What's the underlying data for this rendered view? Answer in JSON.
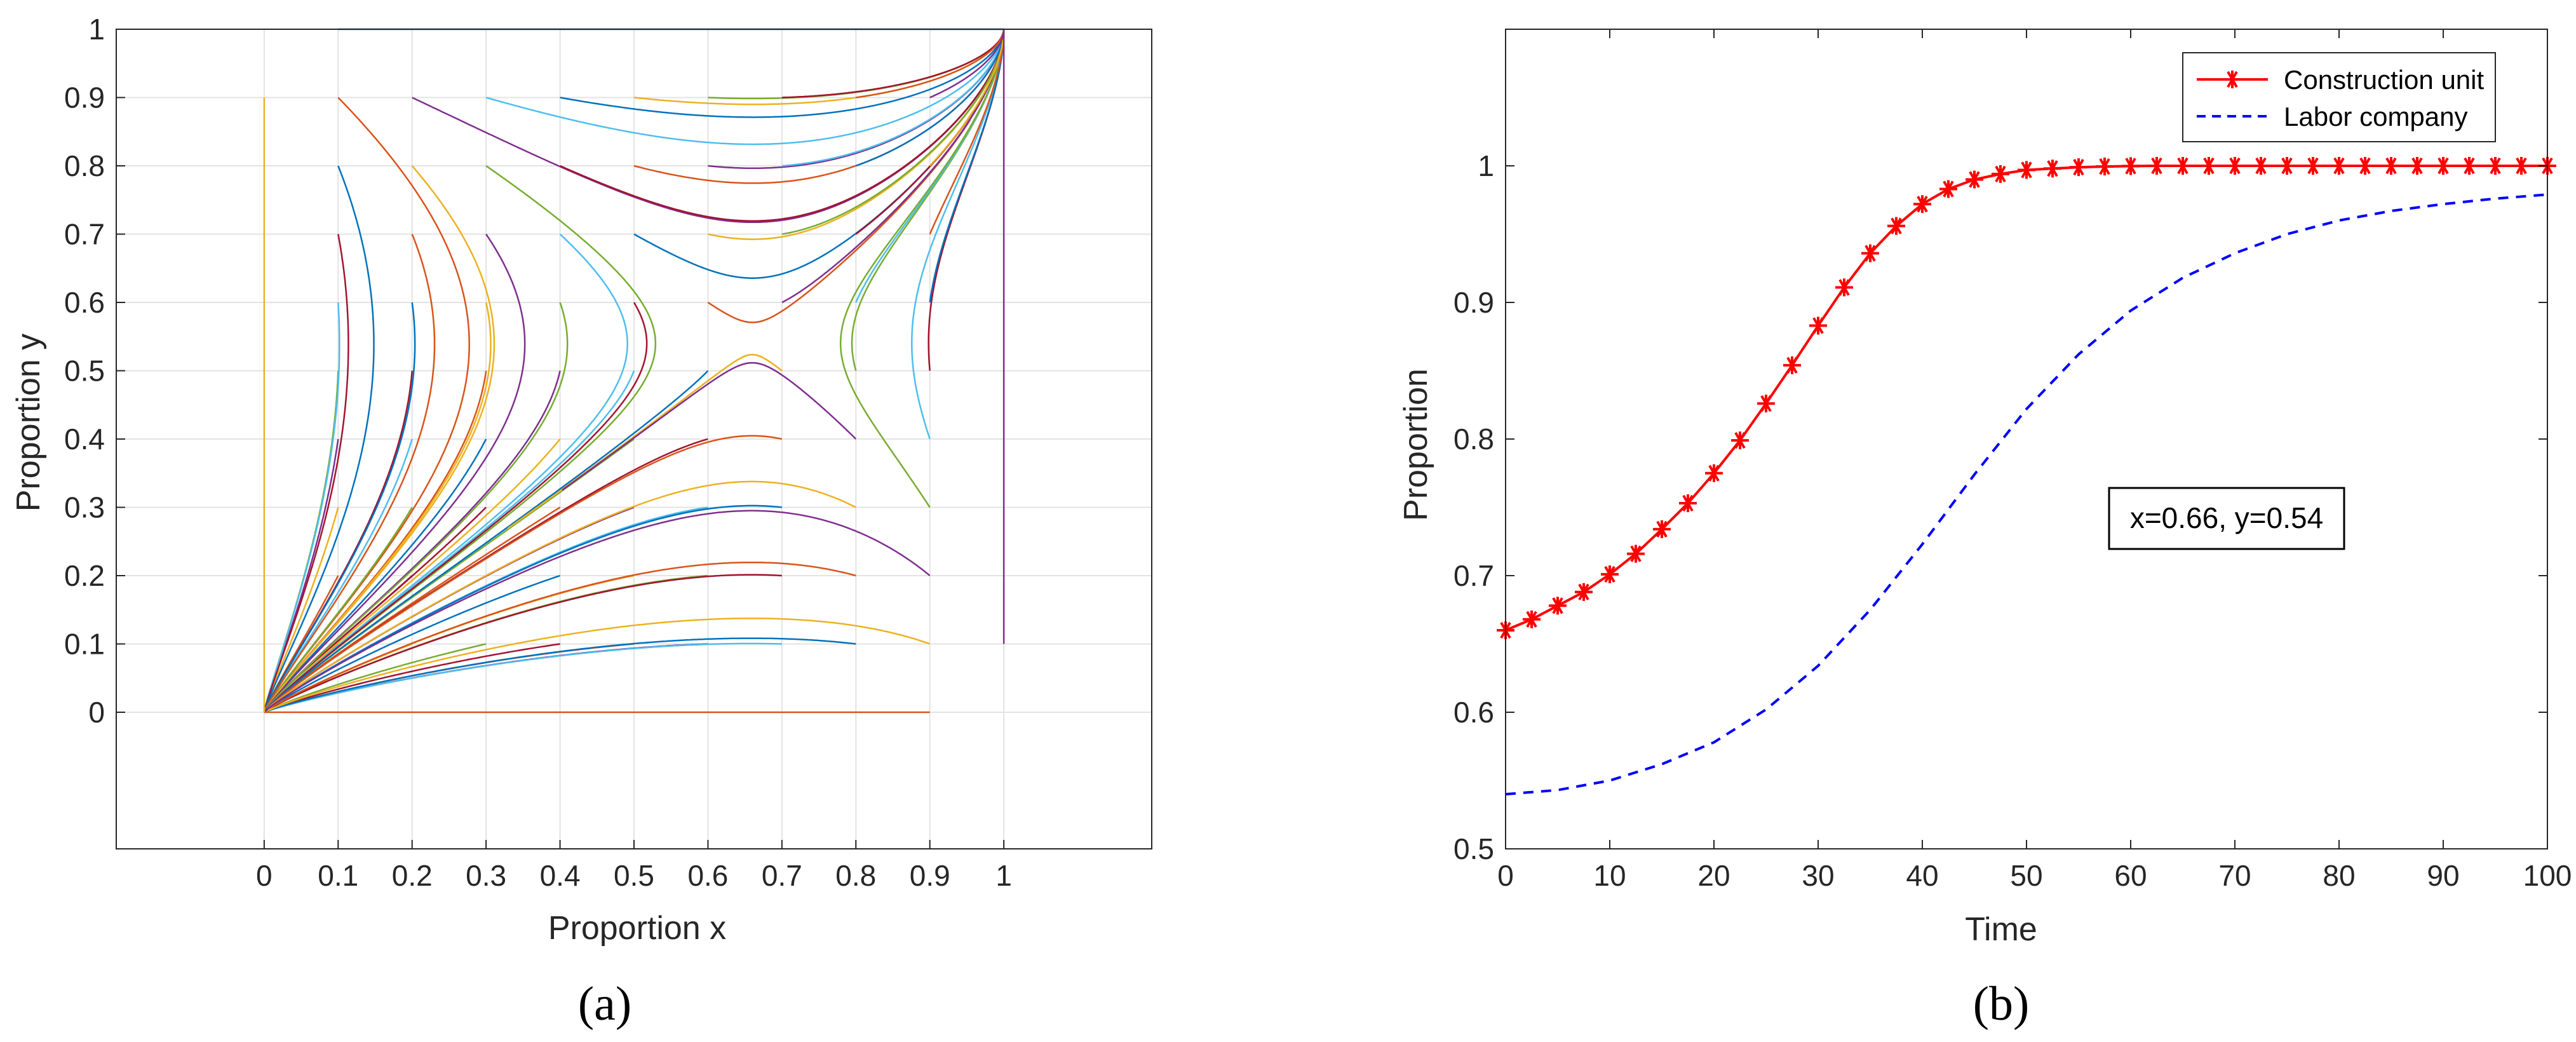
{
  "chart_data": [
    {
      "type": "line",
      "subtype": "phase-portrait",
      "title": "",
      "panel_label": "(a)",
      "xlabel": "Proportion x",
      "ylabel": "Proportion y",
      "xlim": [
        -0.2,
        1.2
      ],
      "ylim": [
        -0.2,
        1.0
      ],
      "grid": true,
      "xticks": [
        "0",
        "0.1",
        "0.2",
        "0.3",
        "0.4",
        "0.5",
        "0.6",
        "0.7",
        "0.8",
        "0.9",
        "1"
      ],
      "xtick_values": [
        0,
        0.1,
        0.2,
        0.3,
        0.4,
        0.5,
        0.6,
        0.7,
        0.8,
        0.9,
        1
      ],
      "yticks": [
        "0",
        "0.1",
        "0.2",
        "0.3",
        "0.4",
        "0.5",
        "0.6",
        "0.7",
        "0.8",
        "0.9",
        "1"
      ],
      "ytick_values": [
        0,
        0.1,
        0.2,
        0.3,
        0.4,
        0.5,
        0.6,
        0.7,
        0.8,
        0.9,
        1
      ],
      "palette": [
        "#0072BD",
        "#D95319",
        "#EDB120",
        "#7E2F8E",
        "#77AC30",
        "#4DBEEE",
        "#A2142F"
      ],
      "trajectories": {
        "start_x": [
          0.1,
          0.2,
          0.3,
          0.4,
          0.5,
          0.6,
          0.7,
          0.8,
          0.9
        ],
        "start_y": [
          0.1,
          0.2,
          0.3,
          0.4,
          0.5,
          0.6,
          0.7,
          0.8,
          0.9
        ],
        "saddle": [
          0.66,
          0.54
        ],
        "stable_points": [
          [
            0,
            0.05
          ],
          [
            1,
            1
          ]
        ]
      }
    },
    {
      "type": "line",
      "title": "",
      "panel_label": "(b)",
      "xlabel": "Time",
      "ylabel": "Proportion",
      "xlim": [
        0,
        100
      ],
      "ylim": [
        0.5,
        1.1
      ],
      "grid": false,
      "xticks": [
        "0",
        "10",
        "20",
        "30",
        "40",
        "50",
        "60",
        "70",
        "80",
        "90",
        "100"
      ],
      "xtick_values": [
        0,
        10,
        20,
        30,
        40,
        50,
        60,
        70,
        80,
        90,
        100
      ],
      "yticks": [
        "0.5",
        "0.6",
        "0.7",
        "0.8",
        "0.9",
        "1"
      ],
      "ytick_values": [
        0.5,
        0.6,
        0.7,
        0.8,
        0.9,
        1.0
      ],
      "legend_position": "top-right",
      "annotation": "x=0.66, y=0.54",
      "series": [
        {
          "name": "Construction unit",
          "color": "#FF0000",
          "style": "solid",
          "marker": "asterisk",
          "x": [
            0,
            2.5,
            5,
            7.5,
            10,
            12.5,
            15,
            17.5,
            20,
            22.5,
            25,
            27.5,
            30,
            32.5,
            35,
            37.5,
            40,
            42.5,
            45,
            47.5,
            50,
            52.5,
            55,
            57.5,
            60,
            62.5,
            65,
            67.5,
            70,
            72.5,
            75,
            77.5,
            80,
            82.5,
            85,
            87.5,
            90,
            92.5,
            95,
            97.5,
            100
          ],
          "y": [
            0.66,
            0.668,
            0.678,
            0.688,
            0.701,
            0.716,
            0.734,
            0.753,
            0.775,
            0.799,
            0.826,
            0.854,
            0.883,
            0.911,
            0.936,
            0.956,
            0.972,
            0.983,
            0.99,
            0.994,
            0.997,
            0.998,
            0.999,
            0.9995,
            0.9998,
            1.0,
            1.0,
            1.0,
            1.0,
            1.0,
            1.0,
            1.0,
            1.0,
            1.0,
            1.0,
            1.0,
            1.0,
            1.0,
            1.0,
            1.0,
            1.0
          ]
        },
        {
          "name": "Labor company",
          "color": "#0000FF",
          "style": "dashed",
          "marker": "none",
          "x": [
            0,
            5,
            10,
            15,
            20,
            25,
            30,
            35,
            40,
            45,
            50,
            55,
            60,
            65,
            70,
            75,
            80,
            85,
            90,
            95,
            100
          ],
          "y": [
            0.54,
            0.543,
            0.55,
            0.562,
            0.578,
            0.602,
            0.634,
            0.675,
            0.723,
            0.774,
            0.822,
            0.862,
            0.894,
            0.918,
            0.936,
            0.95,
            0.96,
            0.967,
            0.972,
            0.976,
            0.979
          ]
        }
      ]
    }
  ]
}
